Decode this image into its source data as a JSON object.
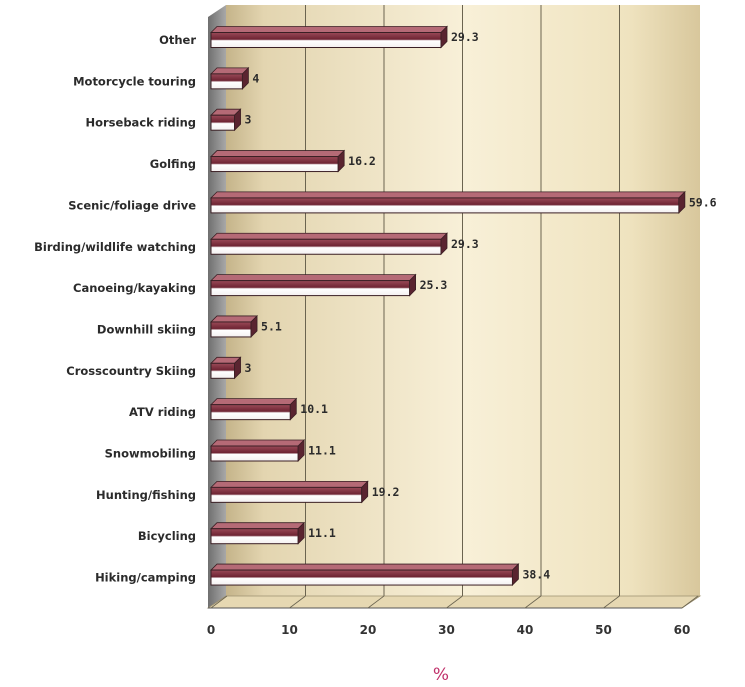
{
  "chart_data": {
    "type": "bar",
    "orientation": "horizontal",
    "categories": [
      "Other",
      "Motorcycle touring",
      "Horseback riding",
      "Golfing",
      "Scenic/foliage drive",
      "Birding/wildlife watching",
      "Canoeing/kayaking",
      "Downhill skiing",
      "Crosscountry Skiing",
      "ATV riding",
      "Snowmobiling",
      "Hunting/fishing",
      "Bicycling",
      "Hiking/camping"
    ],
    "values": [
      29.3,
      4,
      3,
      16.2,
      59.6,
      29.3,
      25.3,
      5.1,
      3,
      10.1,
      11.1,
      19.2,
      11.1,
      38.4
    ],
    "value_labels": [
      "29.3",
      "4",
      "3",
      "16.2",
      "59.6",
      "29.3",
      "25.3",
      "5.1",
      "3",
      "10.1",
      "11.1",
      "19.2",
      "11.1",
      "38.4"
    ],
    "xlabel": "%",
    "ylabel": "",
    "title": "",
    "xlim": [
      0,
      60
    ],
    "xticks": [
      "0",
      "10",
      "20",
      "30",
      "40",
      "50",
      "60"
    ],
    "grid": true,
    "legend": "none",
    "colors": {
      "bar_face": "#ffffff",
      "bar_shade": "#7a2d3c",
      "bar_top": "#b56a76",
      "bar_edge": "#3a1f24",
      "wall_light": "#f6edd2",
      "wall_dark": "#c9ba94",
      "floor": "#e9dcb9",
      "side_wall": "#8e8e8e",
      "grid": "#6b6450",
      "xlabel": "#c0306a"
    }
  }
}
